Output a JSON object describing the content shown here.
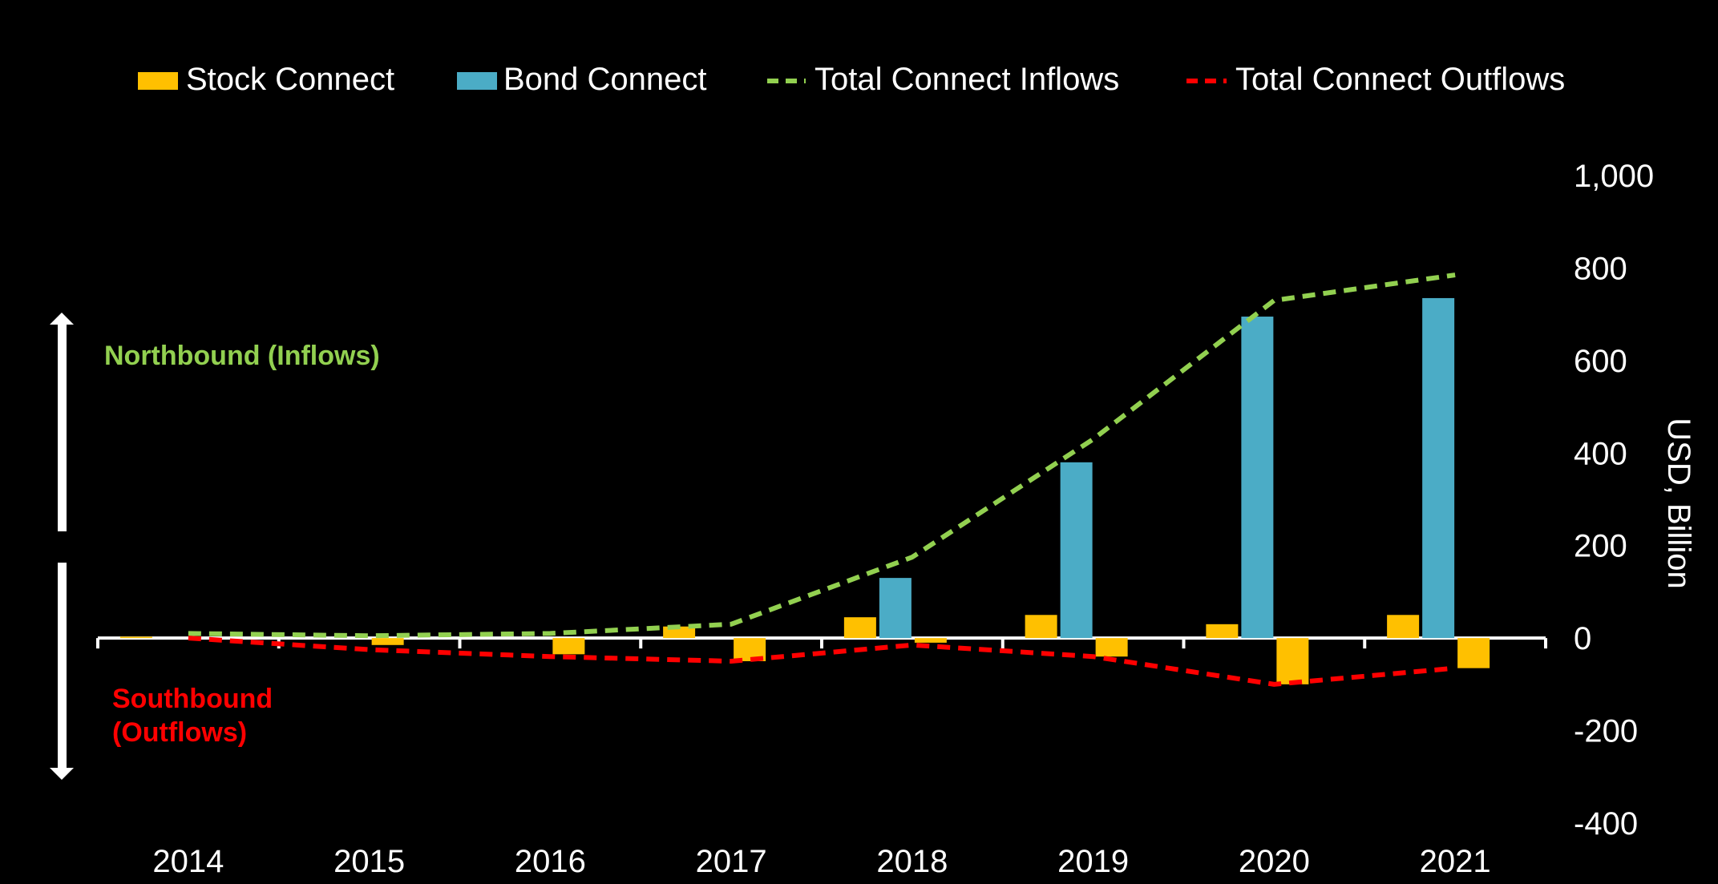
{
  "chart_data": {
    "type": "bar",
    "categories": [
      "2014",
      "2015",
      "2016",
      "2017",
      "2018",
      "2019",
      "2020",
      "2021"
    ],
    "series": [
      {
        "name": "Stock Connect",
        "kind": "bar",
        "color": "#FFC000",
        "inflow": [
          3,
          0,
          0,
          25,
          45,
          50,
          30,
          50
        ],
        "outflow": [
          0,
          -15,
          -35,
          -50,
          -10,
          -40,
          -100,
          -65
        ]
      },
      {
        "name": "Bond Connect",
        "kind": "bar",
        "color": "#4BACC6",
        "inflow": [
          0,
          0,
          0,
          0,
          130,
          380,
          695,
          735
        ]
      },
      {
        "name": "Total Connect Inflows",
        "kind": "line",
        "color": "#92D050",
        "values": [
          10,
          5,
          10,
          30,
          175,
          430,
          730,
          785
        ]
      },
      {
        "name": "Total Connect Outflows",
        "kind": "line",
        "color": "#FF0000",
        "values": [
          0,
          -25,
          -40,
          -50,
          -15,
          -40,
          -100,
          -65
        ]
      }
    ],
    "ylabel": "USD, Billion",
    "ylim": [
      -400,
      1000
    ],
    "yticks": [
      "1,000",
      "800",
      "600",
      "400",
      "200",
      "0",
      "-200",
      "-400"
    ],
    "ytick_values": [
      1000,
      800,
      600,
      400,
      200,
      0,
      -200,
      -400
    ],
    "legend_position": "top",
    "annotations": {
      "northbound": "Northbound (Inflows)",
      "southbound_line1": "Southbound",
      "southbound_line2": "(Outflows)"
    },
    "colors": {
      "background": "#000000",
      "text": "#FFFFFF",
      "northbound": "#92D050",
      "southbound": "#FF0000"
    }
  }
}
